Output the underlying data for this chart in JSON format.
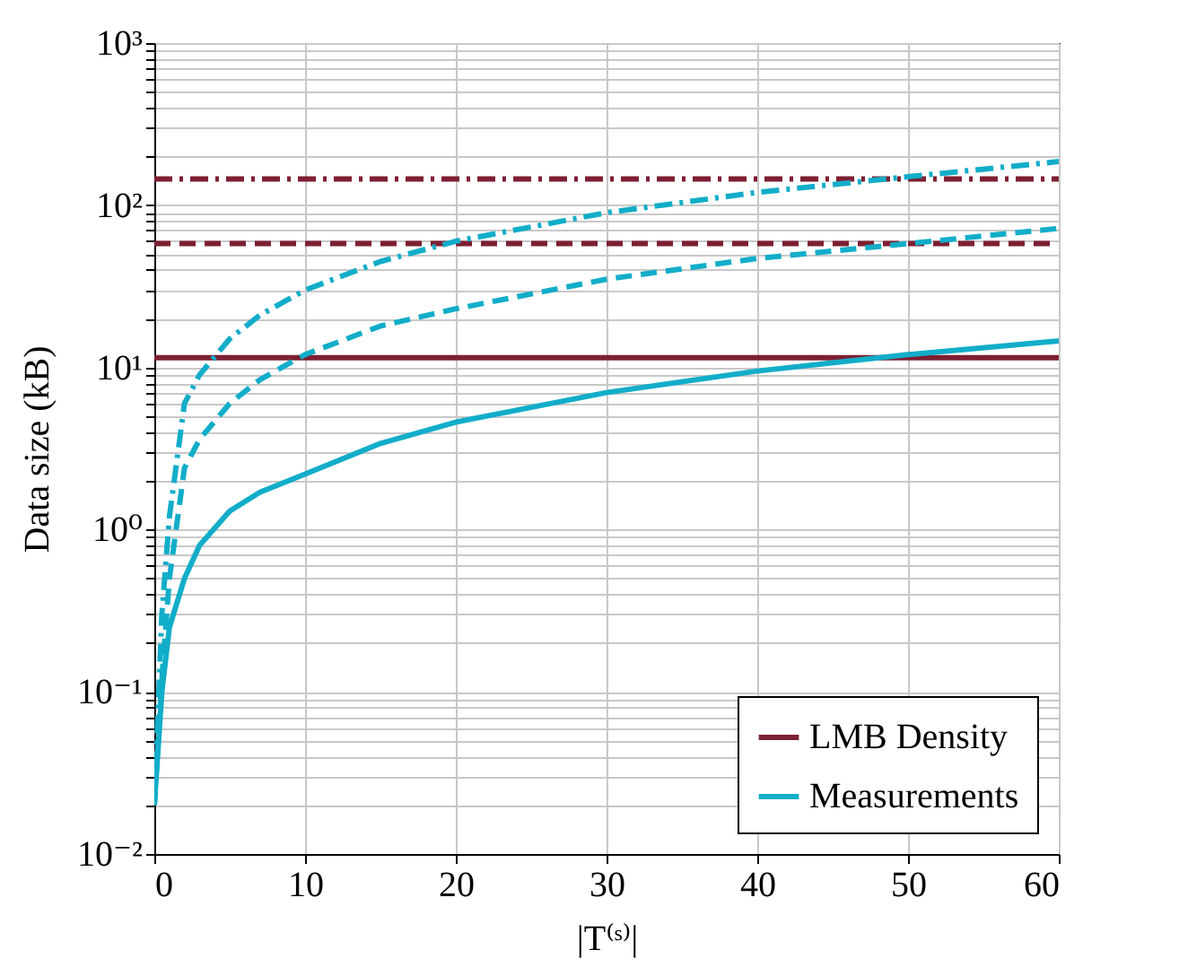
{
  "chart_data": {
    "type": "line",
    "xlabel": "|T⁽ˢ⁾|",
    "ylabel": "Data size (kB)",
    "xlim": [
      0,
      60
    ],
    "xticks": [
      0,
      10,
      20,
      30,
      40,
      50,
      60
    ],
    "ylim": [
      0.01,
      1000
    ],
    "log": "y",
    "grid": true,
    "legend": "bottom right",
    "yticks": [
      {
        "value": 0.01,
        "label": "10⁻²"
      },
      {
        "value": 0.02,
        "label": null
      },
      {
        "value": 0.03,
        "label": null
      },
      {
        "value": 0.04,
        "label": null
      },
      {
        "value": 0.05,
        "label": null
      },
      {
        "value": 0.06,
        "label": null
      },
      {
        "value": 0.07,
        "label": null
      },
      {
        "value": 0.08,
        "label": null
      },
      {
        "value": 0.09,
        "label": null
      },
      {
        "value": 0.1,
        "label": "10⁻¹"
      },
      {
        "value": 0.2,
        "label": null
      },
      {
        "value": 0.3,
        "label": null
      },
      {
        "value": 0.4,
        "label": null
      },
      {
        "value": 0.5,
        "label": null
      },
      {
        "value": 0.6,
        "label": null
      },
      {
        "value": 0.7,
        "label": null
      },
      {
        "value": 0.8,
        "label": null
      },
      {
        "value": 0.9,
        "label": null
      },
      {
        "value": 1,
        "label": "10⁰"
      },
      {
        "value": 2,
        "label": null
      },
      {
        "value": 3,
        "label": null
      },
      {
        "value": 4,
        "label": null
      },
      {
        "value": 5,
        "label": null
      },
      {
        "value": 6,
        "label": null
      },
      {
        "value": 7,
        "label": null
      },
      {
        "value": 8,
        "label": null
      },
      {
        "value": 9,
        "label": null
      },
      {
        "value": 10,
        "label": "10¹"
      },
      {
        "value": 20,
        "label": null
      },
      {
        "value": 30,
        "label": null
      },
      {
        "value": 40,
        "label": null
      },
      {
        "value": 50,
        "label": null
      },
      {
        "value": 60,
        "label": null
      },
      {
        "value": 70,
        "label": null
      },
      {
        "value": 80,
        "label": null
      },
      {
        "value": 90,
        "label": null
      },
      {
        "value": 100,
        "label": "10²"
      },
      {
        "value": 200,
        "label": null
      },
      {
        "value": 300,
        "label": null
      },
      {
        "value": 400,
        "label": null
      },
      {
        "value": 500,
        "label": null
      },
      {
        "value": 600,
        "label": null
      },
      {
        "value": 700,
        "label": null
      },
      {
        "value": 800,
        "label": null
      },
      {
        "value": 900,
        "label": null
      },
      {
        "value": 1000,
        "label": "10³"
      }
    ],
    "series": [
      {
        "name": "LMB Density",
        "color": "#7d1f32",
        "line_style": "solid",
        "x": [
          0,
          60
        ],
        "values": [
          11.5,
          11.5
        ]
      },
      {
        "color": "#7d1f32",
        "line_style": "dashed",
        "x": [
          0,
          60
        ],
        "values": [
          58,
          58
        ]
      },
      {
        "color": "#7d1f32",
        "line_style": "dashdot",
        "x": [
          0,
          60
        ],
        "values": [
          145,
          145
        ]
      },
      {
        "name": "Measurements",
        "color": "#12adc9",
        "line_style": "solid",
        "x": [
          0,
          0.5,
          1,
          2,
          3,
          5,
          7,
          10,
          15,
          20,
          30,
          40,
          50,
          60
        ],
        "values": [
          0.02,
          0.1,
          0.25,
          0.5,
          0.8,
          1.3,
          1.7,
          2.2,
          3.4,
          4.6,
          7,
          9.5,
          12,
          14.6
        ]
      },
      {
        "color": "#12adc9",
        "line_style": "dashed",
        "x": [
          0,
          0.5,
          1,
          2,
          3,
          5,
          7,
          10,
          15,
          20,
          30,
          40,
          50,
          60
        ],
        "values": [
          0.02,
          0.12,
          0.5,
          2.4,
          3.6,
          6,
          8.4,
          12,
          18,
          23,
          35,
          47,
          58,
          72
        ]
      },
      {
        "color": "#12adc9",
        "line_style": "dashdot",
        "x": [
          0,
          0.5,
          1,
          2,
          3,
          5,
          7,
          10,
          15,
          20,
          30,
          40,
          50,
          60
        ],
        "values": [
          0.02,
          0.3,
          1.2,
          6,
          9,
          15,
          21,
          30,
          45,
          60,
          90,
          120,
          150,
          186
        ]
      }
    ]
  }
}
